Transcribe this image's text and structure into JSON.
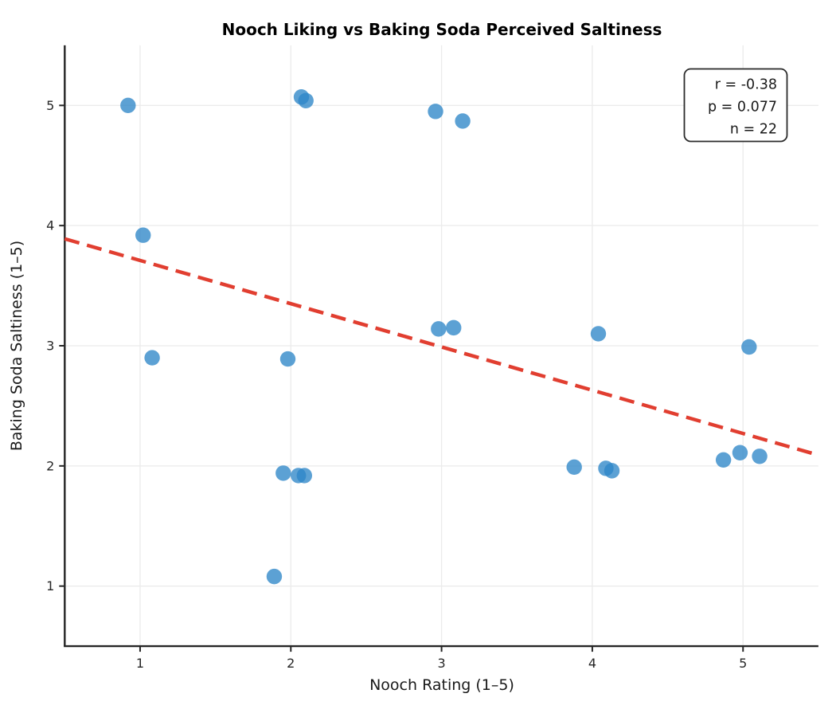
{
  "chart_data": {
    "type": "scatter",
    "title": "Nooch Liking vs Baking Soda Perceived Saltiness",
    "xlabel": "Nooch Rating (1–5)",
    "ylabel": "Baking Soda Saltiness (1–5)",
    "xlim": [
      0.5,
      5.5
    ],
    "ylim": [
      0.5,
      5.5
    ],
    "xticks": [
      "1",
      "2",
      "3",
      "4",
      "5"
    ],
    "yticks": [
      "1",
      "2",
      "3",
      "4",
      "5"
    ],
    "grid": true,
    "legend_position": "none",
    "points": [
      [
        0.92,
        5.0
      ],
      [
        1.02,
        3.92
      ],
      [
        1.08,
        2.9
      ],
      [
        2.07,
        5.07
      ],
      [
        2.1,
        5.04
      ],
      [
        2.96,
        4.95
      ],
      [
        3.14,
        4.87
      ],
      [
        2.98,
        3.14
      ],
      [
        3.08,
        3.15
      ],
      [
        1.98,
        2.89
      ],
      [
        4.04,
        3.1
      ],
      [
        5.04,
        2.99
      ],
      [
        1.95,
        1.94
      ],
      [
        2.05,
        1.92
      ],
      [
        2.09,
        1.92
      ],
      [
        3.88,
        1.99
      ],
      [
        4.09,
        1.98
      ],
      [
        4.13,
        1.96
      ],
      [
        4.87,
        2.05
      ],
      [
        4.98,
        2.11
      ],
      [
        5.11,
        2.08
      ],
      [
        1.89,
        1.08
      ]
    ],
    "trendline": {
      "x1": 0.5,
      "y1": 3.89,
      "x2": 5.5,
      "y2": 2.09,
      "style": "dashed"
    },
    "annotation": {
      "lines": [
        "r = -0.38",
        "p = 0.077",
        "n = 22"
      ]
    },
    "colors": {
      "point": "#2E86C8",
      "trend": "#E13E30",
      "grid": "#EBEBEB",
      "spine": "#262626",
      "annotation_border": "#2B2B2B",
      "annotation_bg": "#FFFFFF"
    }
  }
}
